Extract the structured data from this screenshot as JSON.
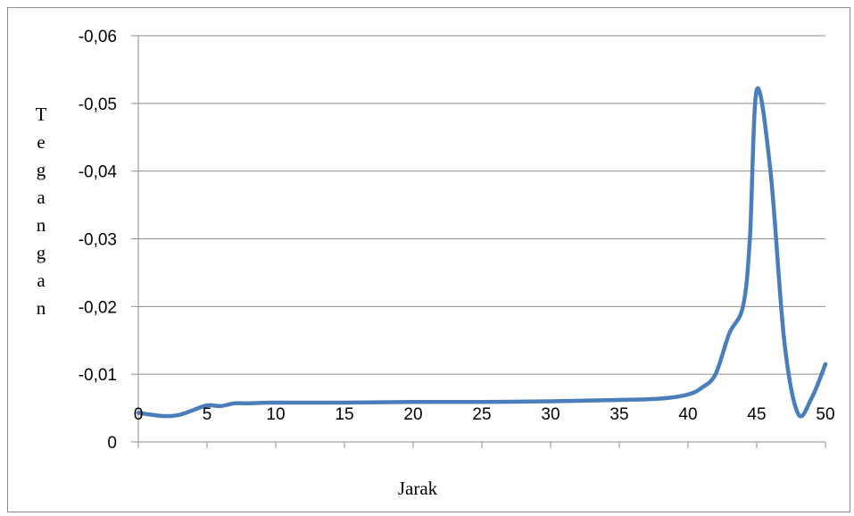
{
  "chart_data": {
    "type": "line",
    "title": "",
    "xlabel": "Jarak",
    "ylabel": "Tegangan",
    "ylabel_chars": [
      "T",
      "e",
      "g",
      "a",
      "n",
      "g",
      "a",
      "n"
    ],
    "xlim": [
      0,
      50
    ],
    "ylim": [
      0,
      -0.06
    ],
    "y_axis_reversed": true,
    "x_ticks": [
      0,
      5,
      10,
      15,
      20,
      25,
      30,
      35,
      40,
      45,
      50
    ],
    "x_tick_labels": [
      "0",
      "5",
      "10",
      "15",
      "20",
      "25",
      "30",
      "35",
      "40",
      "45",
      "50"
    ],
    "y_ticks": [
      0,
      -0.01,
      -0.02,
      -0.03,
      -0.04,
      -0.05,
      -0.06
    ],
    "y_tick_labels": [
      "0",
      "-0,01",
      "-0,02",
      "-0,03",
      "-0,04",
      "-0,05",
      "-0,06"
    ],
    "grid": true,
    "legend": "none",
    "series": [
      {
        "color": "#4a7ebb",
        "x": [
          0,
          1,
          2,
          3,
          4,
          5,
          6,
          7,
          8,
          10,
          15,
          20,
          25,
          30,
          35,
          38,
          40,
          41,
          42,
          43,
          44,
          44.5,
          45,
          46,
          47,
          48,
          49,
          50
        ],
        "y": [
          -0.0043,
          -0.004,
          -0.0038,
          -0.004,
          -0.0047,
          -0.0054,
          -0.0053,
          -0.0057,
          -0.0057,
          -0.0058,
          -0.0058,
          -0.0059,
          -0.0059,
          -0.006,
          -0.0062,
          -0.0064,
          -0.007,
          -0.008,
          -0.01,
          -0.016,
          -0.02,
          -0.03,
          -0.052,
          -0.04,
          -0.015,
          -0.0042,
          -0.0065,
          -0.0115
        ]
      }
    ]
  }
}
